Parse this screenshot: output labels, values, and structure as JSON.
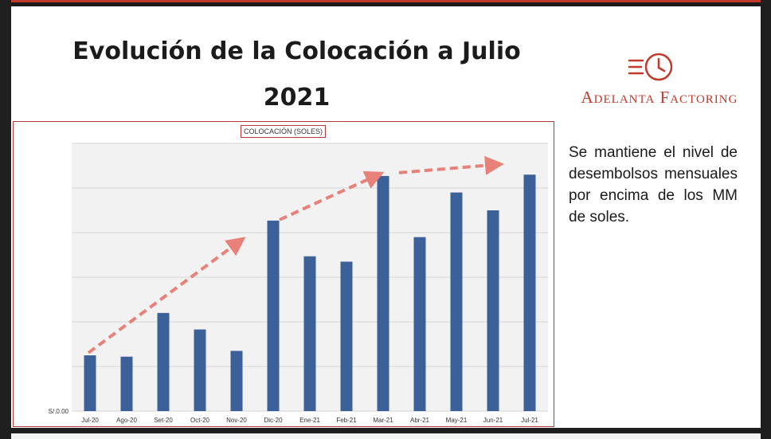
{
  "slide": {
    "title": "Evolución de la Colocación a Julio 2021",
    "side_text": "Se mantiene el nivel de desembolsos mensuales por encima de los MM de soles."
  },
  "logo": {
    "text": "Adelanta Factoring",
    "icon": "clock-speed-icon",
    "color": "#c0392b"
  },
  "colors": {
    "bar": "#3c6199",
    "arrow": "#e8817a",
    "frame": "#b03a3a"
  },
  "chart_data": {
    "type": "bar",
    "title": "COLOCACIÓN (SOLES)",
    "categories": [
      "Jul-20",
      "Ago-20",
      "Set-20",
      "Oct-20",
      "Nov-20",
      "Dic-20",
      "Ene-21",
      "Feb-21",
      "Mar-21",
      "Abr-21",
      "May-21",
      "Jun-21",
      "Jul-21"
    ],
    "values": [
      1.25,
      1.22,
      2.2,
      1.83,
      1.35,
      4.27,
      3.47,
      3.35,
      5.27,
      3.9,
      4.9,
      4.5,
      5.3
    ],
    "value_units": "relative (axis values hidden)",
    "ylim": [
      0,
      6
    ],
    "y_tick_label": "S/.0.00",
    "grid": true,
    "trend_arrows": 2
  }
}
